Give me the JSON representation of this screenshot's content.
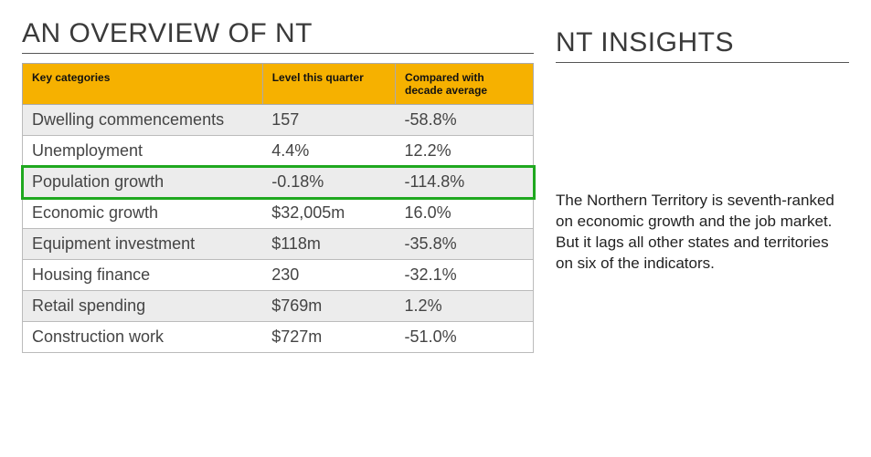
{
  "overview": {
    "title": "AN OVERVIEW OF NT",
    "header_bg": "#f6b100",
    "highlight_color": "#1fa81f",
    "zebra_odd_bg": "#ececec",
    "zebra_even_bg": "#ffffff",
    "columns": [
      "Key categories",
      "Level this quarter",
      "Compared with decade average"
    ],
    "rows": [
      {
        "category": "Dwelling commencements",
        "level": "157",
        "compared": "-58.8%",
        "highlight": false
      },
      {
        "category": "Unemployment",
        "level": "4.4%",
        "compared": "12.2%",
        "highlight": false
      },
      {
        "category": "Population growth",
        "level": "-0.18%",
        "compared": "-114.8%",
        "highlight": true
      },
      {
        "category": "Economic growth",
        "level": "$32,005m",
        "compared": "16.0%",
        "highlight": false
      },
      {
        "category": "Equipment investment",
        "level": "$118m",
        "compared": "-35.8%",
        "highlight": false
      },
      {
        "category": "Housing finance",
        "level": "230",
        "compared": "-32.1%",
        "highlight": false
      },
      {
        "category": "Retail spending",
        "level": "$769m",
        "compared": "1.2%",
        "highlight": false
      },
      {
        "category": "Construction work",
        "level": "$727m",
        "compared": "-51.0%",
        "highlight": false
      }
    ]
  },
  "insights": {
    "title": "NT INSIGHTS",
    "body": "The Northern Territory is seventh-ranked on economic growth and the job market. But it lags all other states and territories on six of the indicators."
  }
}
